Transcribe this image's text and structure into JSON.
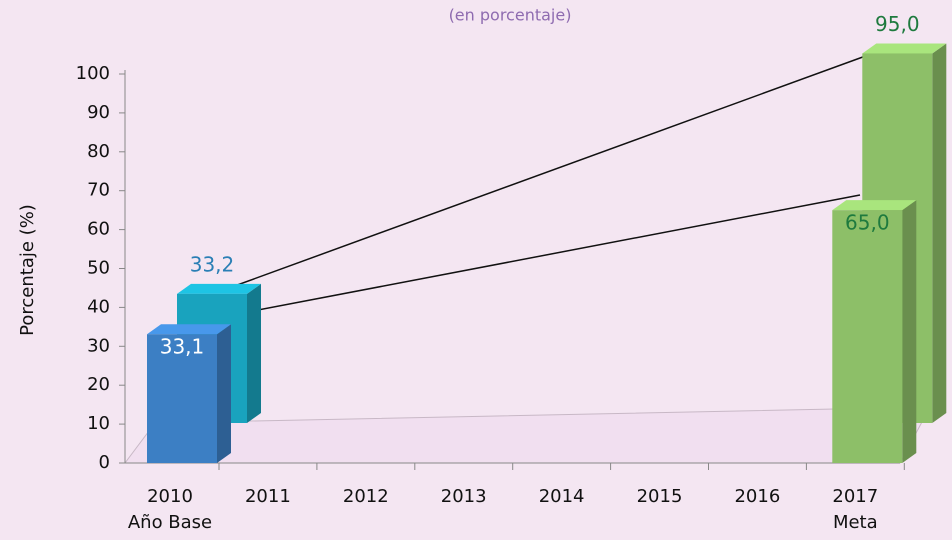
{
  "chart_data": {
    "type": "bar3d",
    "subtitle": "(en porcentaje)",
    "y_label": "Porcentaje (%)",
    "categories": [
      "2010",
      "2011",
      "2012",
      "2013",
      "2014",
      "2015",
      "2016",
      "2017"
    ],
    "category_notes": [
      "Año Base",
      null,
      null,
      null,
      null,
      null,
      null,
      "Meta"
    ],
    "series": [
      {
        "colors": [
          "#3c7fc4",
          null,
          null,
          null,
          null,
          null,
          null,
          "#8dbf68"
        ],
        "label_color": [
          "#ffffff",
          null,
          null,
          null,
          null,
          null,
          null,
          "#1e7a3e"
        ],
        "values": [
          33.1,
          null,
          null,
          null,
          null,
          null,
          null,
          65.0
        ],
        "value_labels": [
          "33,1",
          null,
          null,
          null,
          null,
          null,
          null,
          "65,0"
        ]
      },
      {
        "colors": [
          "#19a3be",
          null,
          null,
          null,
          null,
          null,
          null,
          "#8dbf68"
        ],
        "label_color": [
          "#2a7fb5",
          null,
          null,
          null,
          null,
          null,
          null,
          "#1e7a3e"
        ],
        "values": [
          33.2,
          null,
          null,
          null,
          null,
          null,
          null,
          95.0
        ],
        "value_labels": [
          "33,2",
          null,
          null,
          null,
          null,
          null,
          null,
          "95,0"
        ],
        "position": "back"
      }
    ],
    "ylim": [
      0,
      100
    ],
    "yticks": [
      0,
      10,
      20,
      30,
      40,
      50,
      60,
      70,
      80,
      90,
      100
    ]
  }
}
